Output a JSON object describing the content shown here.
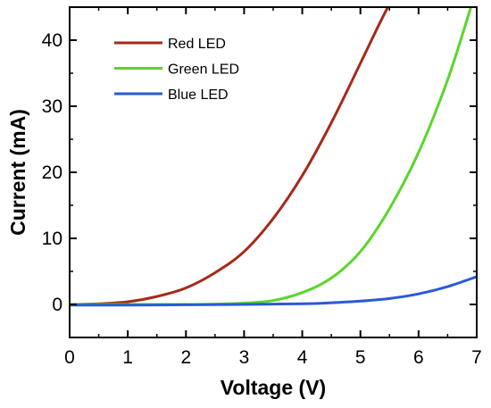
{
  "chart_data": {
    "type": "line",
    "title": "",
    "xlabel": "Voltage (V)",
    "ylabel": "Current (mA)",
    "xlim": [
      0,
      7
    ],
    "ylim": [
      -5,
      45
    ],
    "xticks": [
      "0",
      "1",
      "2",
      "3",
      "4",
      "5",
      "6",
      "7"
    ],
    "yticks": [
      "0",
      "10",
      "20",
      "30",
      "40"
    ],
    "grid": false,
    "legend_position": "top-left",
    "series": [
      {
        "name": "Red LED",
        "color": "#a52a1a",
        "x": [
          0,
          0.5,
          1.0,
          1.5,
          2.0,
          2.5,
          3.0,
          3.5,
          4.0,
          4.5,
          5.0,
          5.3,
          5.5
        ],
        "y": [
          0,
          0.1,
          0.4,
          1.2,
          2.5,
          4.8,
          8.0,
          13.0,
          19.5,
          27.5,
          36.5,
          42.0,
          45.5
        ]
      },
      {
        "name": "Green LED",
        "color": "#5ad62a",
        "x": [
          0,
          1,
          2,
          2.5,
          3.0,
          3.5,
          4.0,
          4.5,
          5.0,
          5.5,
          6.0,
          6.5,
          6.9
        ],
        "y": [
          0,
          0,
          0,
          0.05,
          0.2,
          0.6,
          1.8,
          4.0,
          8.0,
          14.5,
          23.0,
          34.0,
          45.0
        ]
      },
      {
        "name": "Blue LED",
        "color": "#2a5ad6",
        "x": [
          0,
          1,
          2,
          3,
          4,
          4.5,
          5.0,
          5.5,
          6.0,
          6.5,
          7.0
        ],
        "y": [
          -0.1,
          -0.1,
          -0.05,
          0,
          0.1,
          0.25,
          0.5,
          0.9,
          1.6,
          2.7,
          4.2
        ]
      }
    ]
  }
}
